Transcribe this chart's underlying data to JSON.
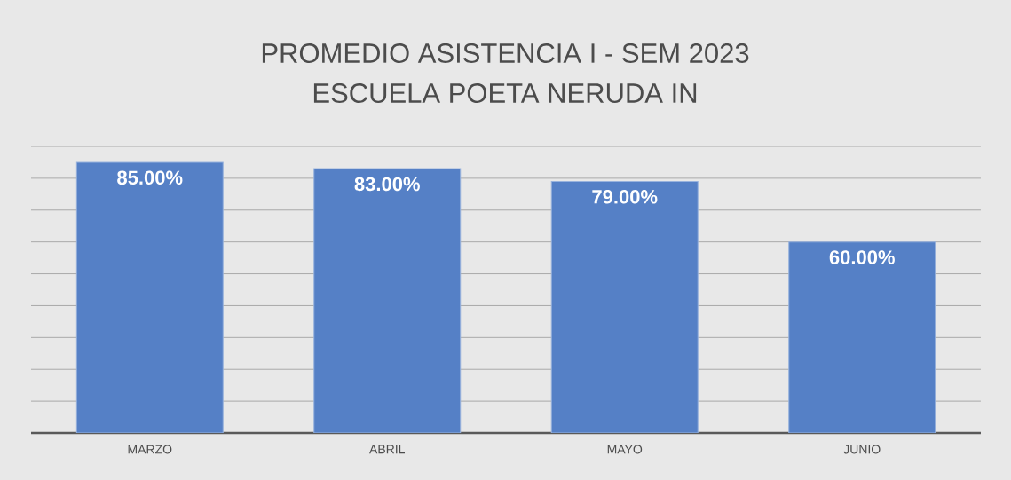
{
  "chart_data": {
    "type": "bar",
    "title": "PROMEDIO ASISTENCIA I - SEM 2023",
    "subtitle": "ESCUELA POETA NERUDA IN",
    "categories": [
      "MARZO",
      "ABRIL",
      "MAYO",
      "JUNIO"
    ],
    "values": [
      85,
      83,
      79,
      60
    ],
    "value_labels": [
      "85.00%",
      "83.00%",
      "79.00%",
      "60.00%"
    ],
    "color": "#5580c6",
    "ylim": [
      0,
      90
    ],
    "yticks": [
      {
        "value": 0,
        "label": null
      },
      {
        "value": 10,
        "label": null
      },
      {
        "value": 20,
        "label": null
      },
      {
        "value": 30,
        "label": null
      },
      {
        "value": 40,
        "label": null
      },
      {
        "value": 50,
        "label": null
      },
      {
        "value": 60,
        "label": null
      },
      {
        "value": 70,
        "label": null
      },
      {
        "value": 80,
        "label": null
      },
      {
        "value": 90,
        "label": null
      }
    ],
    "tick_labels": "x",
    "grid": "y"
  }
}
